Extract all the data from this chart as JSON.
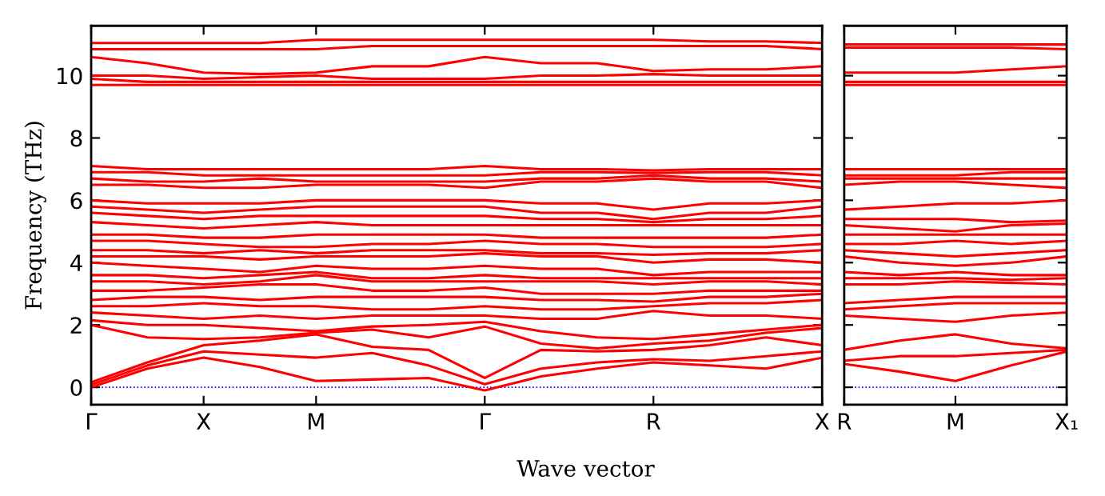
{
  "chart_data": [
    {
      "type": "line",
      "ylabel": "Frequency (THz)",
      "xlabel": "Wave vector",
      "categories": [
        "Γ",
        null,
        "X",
        null,
        "M",
        null,
        null,
        "Γ",
        null,
        null,
        "R",
        null,
        null,
        "X"
      ],
      "ylim": [
        -0.56,
        11.6
      ],
      "yticks": [
        0,
        2,
        4,
        6,
        8,
        10
      ],
      "grid": false,
      "line_style": "solid",
      "ref_lines": [
        {
          "axis": "y",
          "value": 0,
          "color": "#0000ff",
          "line_style": "dotted"
        }
      ],
      "series": [
        {
          "color": "#ff0000",
          "values": [
            0,
            0.6,
            0.95,
            0.65,
            0.2,
            0.25,
            0.3,
            -0.1,
            0.35,
            0.6,
            0.8,
            0.7,
            0.6,
            0.95
          ]
        },
        {
          "color": "#ff0000",
          "values": [
            0.08,
            0.7,
            1.15,
            1.05,
            0.95,
            1.1,
            0.7,
            0.1,
            0.6,
            0.8,
            0.9,
            0.85,
            1.0,
            1.15
          ]
        },
        {
          "color": "#ff0000",
          "values": [
            0.16,
            0.8,
            1.35,
            1.5,
            1.7,
            1.3,
            1.2,
            0.3,
            1.2,
            1.15,
            1.2,
            1.35,
            1.6,
            1.35
          ]
        },
        {
          "color": "#ff0000",
          "values": [
            2.0,
            1.6,
            1.55,
            1.6,
            1.75,
            1.85,
            1.6,
            1.95,
            1.4,
            1.25,
            1.4,
            1.5,
            1.75,
            1.9
          ]
        },
        {
          "color": "#ff0000",
          "values": [
            2.15,
            2.0,
            2.0,
            1.9,
            1.8,
            1.95,
            2.0,
            2.1,
            1.8,
            1.6,
            1.55,
            1.7,
            1.85,
            2.0
          ]
        },
        {
          "color": "#ff0000",
          "values": [
            2.4,
            2.3,
            2.2,
            2.3,
            2.2,
            2.3,
            2.3,
            2.3,
            2.2,
            2.2,
            2.45,
            2.3,
            2.3,
            2.2
          ]
        },
        {
          "color": "#ff0000",
          "values": [
            2.6,
            2.6,
            2.7,
            2.6,
            2.6,
            2.5,
            2.5,
            2.6,
            2.5,
            2.5,
            2.6,
            2.7,
            2.7,
            2.8
          ]
        },
        {
          "color": "#ff0000",
          "values": [
            2.8,
            2.9,
            2.9,
            2.8,
            2.9,
            2.9,
            2.9,
            2.9,
            2.8,
            2.8,
            2.75,
            2.9,
            2.9,
            3.0
          ]
        },
        {
          "color": "#ff0000",
          "values": [
            3.1,
            3.1,
            3.2,
            3.3,
            3.3,
            3.1,
            3.1,
            3.2,
            3.0,
            3.0,
            3.0,
            3.1,
            3.1,
            3.1
          ]
        },
        {
          "color": "#ff0000",
          "values": [
            3.4,
            3.4,
            3.3,
            3.4,
            3.6,
            3.4,
            3.4,
            3.4,
            3.4,
            3.4,
            3.3,
            3.4,
            3.4,
            3.3
          ]
        },
        {
          "color": "#ff0000",
          "values": [
            3.6,
            3.6,
            3.5,
            3.6,
            3.7,
            3.5,
            3.5,
            3.6,
            3.5,
            3.5,
            3.5,
            3.5,
            3.5,
            3.5
          ]
        },
        {
          "color": "#ff0000",
          "values": [
            4.0,
            3.9,
            3.8,
            3.7,
            3.9,
            3.8,
            3.8,
            3.9,
            3.8,
            3.8,
            3.6,
            3.7,
            3.7,
            3.7
          ]
        },
        {
          "color": "#ff0000",
          "values": [
            4.2,
            4.2,
            4.2,
            4.1,
            4.2,
            4.2,
            4.2,
            4.3,
            4.2,
            4.2,
            4.0,
            4.1,
            4.1,
            4.0
          ]
        },
        {
          "color": "#ff0000",
          "values": [
            4.4,
            4.4,
            4.3,
            4.4,
            4.3,
            4.4,
            4.4,
            4.4,
            4.3,
            4.3,
            4.25,
            4.3,
            4.3,
            4.4
          ]
        },
        {
          "color": "#ff0000",
          "values": [
            4.7,
            4.7,
            4.6,
            4.5,
            4.5,
            4.6,
            4.6,
            4.7,
            4.6,
            4.6,
            4.5,
            4.5,
            4.5,
            4.6
          ]
        },
        {
          "color": "#ff0000",
          "values": [
            4.9,
            4.9,
            4.8,
            4.8,
            4.9,
            4.9,
            4.9,
            4.9,
            4.8,
            4.8,
            4.8,
            4.8,
            4.8,
            4.9
          ]
        },
        {
          "color": "#ff0000",
          "values": [
            5.3,
            5.2,
            5.1,
            5.2,
            5.3,
            5.2,
            5.2,
            5.2,
            5.2,
            5.2,
            5.2,
            5.2,
            5.2,
            5.2
          ]
        },
        {
          "color": "#ff0000",
          "values": [
            5.6,
            5.5,
            5.4,
            5.5,
            5.5,
            5.5,
            5.5,
            5.5,
            5.4,
            5.4,
            5.3,
            5.4,
            5.4,
            5.5
          ]
        },
        {
          "color": "#ff0000",
          "values": [
            5.8,
            5.7,
            5.6,
            5.7,
            5.8,
            5.8,
            5.8,
            5.8,
            5.6,
            5.6,
            5.4,
            5.6,
            5.6,
            5.8
          ]
        },
        {
          "color": "#ff0000",
          "values": [
            6.0,
            5.9,
            5.9,
            5.9,
            6.0,
            6.0,
            6.0,
            6.0,
            5.9,
            5.9,
            5.7,
            5.9,
            5.9,
            6.0
          ]
        },
        {
          "color": "#ff0000",
          "values": [
            6.5,
            6.5,
            6.4,
            6.4,
            6.5,
            6.5,
            6.5,
            6.4,
            6.6,
            6.6,
            6.7,
            6.6,
            6.6,
            6.4
          ]
        },
        {
          "color": "#ff0000",
          "values": [
            6.7,
            6.6,
            6.6,
            6.7,
            6.6,
            6.6,
            6.6,
            6.6,
            6.7,
            6.7,
            6.8,
            6.7,
            6.7,
            6.6
          ]
        },
        {
          "color": "#ff0000",
          "values": [
            6.9,
            6.9,
            6.8,
            6.8,
            6.8,
            6.8,
            6.8,
            6.8,
            6.9,
            6.9,
            6.88,
            6.9,
            6.9,
            6.8
          ]
        },
        {
          "color": "#ff0000",
          "values": [
            7.1,
            7.0,
            7.0,
            7.0,
            7.0,
            7.0,
            7.0,
            7.1,
            7.0,
            7.0,
            6.96,
            7.0,
            7.0,
            7.0
          ]
        },
        {
          "color": "#ff0000",
          "values": [
            9.7,
            9.7,
            9.7,
            9.7,
            9.7,
            9.7,
            9.7,
            9.7,
            9.7,
            9.7,
            9.7,
            9.7,
            9.7,
            9.7
          ]
        },
        {
          "color": "#ff0000",
          "values": [
            9.9,
            9.8,
            9.8,
            9.8,
            9.8,
            9.8,
            9.8,
            9.8,
            9.8,
            9.8,
            9.8,
            9.8,
            9.8,
            9.8
          ]
        },
        {
          "color": "#ff0000",
          "values": [
            10.0,
            10.0,
            9.9,
            9.95,
            10.0,
            9.9,
            9.9,
            9.9,
            10.0,
            10.0,
            10.05,
            10.0,
            10.0,
            10.0
          ]
        },
        {
          "color": "#ff0000",
          "values": [
            10.6,
            10.4,
            10.1,
            10.05,
            10.1,
            10.3,
            10.3,
            10.6,
            10.4,
            10.4,
            10.15,
            10.2,
            10.2,
            10.3
          ]
        },
        {
          "color": "#ff0000",
          "values": [
            10.85,
            10.85,
            10.85,
            10.85,
            10.85,
            10.95,
            10.95,
            10.95,
            10.95,
            10.95,
            10.95,
            10.95,
            10.95,
            10.85
          ]
        },
        {
          "color": "#ff0000",
          "values": [
            11.05,
            11.05,
            11.05,
            11.05,
            11.15,
            11.15,
            11.15,
            11.15,
            11.15,
            11.15,
            11.15,
            11.1,
            11.1,
            11.05
          ]
        }
      ]
    },
    {
      "type": "line",
      "categories": [
        "R",
        null,
        "M",
        null,
        "X₁"
      ],
      "ylim": [
        -0.56,
        11.6
      ],
      "yticks": [
        0,
        2,
        4,
        6,
        8,
        10
      ],
      "tick_labels": "x",
      "grid": false,
      "line_style": "solid",
      "ref_lines": [
        {
          "axis": "y",
          "value": 0,
          "color": "#0000ff",
          "line_style": "dotted"
        }
      ],
      "series": [
        {
          "color": "#ff0000",
          "values": [
            0.75,
            0.5,
            0.2,
            0.7,
            1.15
          ]
        },
        {
          "color": "#ff0000",
          "values": [
            0.85,
            1.0,
            1.0,
            1.1,
            1.2
          ]
        },
        {
          "color": "#ff0000",
          "values": [
            1.2,
            1.5,
            1.7,
            1.4,
            1.25
          ]
        },
        {
          "color": "#ff0000",
          "values": [
            2.3,
            2.2,
            2.1,
            2.3,
            2.4
          ]
        },
        {
          "color": "#ff0000",
          "values": [
            2.5,
            2.6,
            2.7,
            2.7,
            2.7
          ]
        },
        {
          "color": "#ff0000",
          "values": [
            2.7,
            2.8,
            2.9,
            2.9,
            2.9
          ]
        },
        {
          "color": "#ff0000",
          "values": [
            3.3,
            3.3,
            3.4,
            3.35,
            3.3
          ]
        },
        {
          "color": "#ff0000",
          "values": [
            3.5,
            3.5,
            3.5,
            3.45,
            3.5
          ]
        },
        {
          "color": "#ff0000",
          "values": [
            3.7,
            3.6,
            3.7,
            3.6,
            3.6
          ]
        },
        {
          "color": "#ff0000",
          "values": [
            4.2,
            4.0,
            3.9,
            4.0,
            4.2
          ]
        },
        {
          "color": "#ff0000",
          "values": [
            4.4,
            4.3,
            4.2,
            4.3,
            4.4
          ]
        },
        {
          "color": "#ff0000",
          "values": [
            4.6,
            4.6,
            4.7,
            4.6,
            4.7
          ]
        },
        {
          "color": "#ff0000",
          "values": [
            4.9,
            4.9,
            4.9,
            4.9,
            4.9
          ]
        },
        {
          "color": "#ff0000",
          "values": [
            5.2,
            5.1,
            5.0,
            5.2,
            5.25
          ]
        },
        {
          "color": "#ff0000",
          "values": [
            5.4,
            5.4,
            5.4,
            5.3,
            5.35
          ]
        },
        {
          "color": "#ff0000",
          "values": [
            5.7,
            5.8,
            5.9,
            5.9,
            6.0
          ]
        },
        {
          "color": "#ff0000",
          "values": [
            6.5,
            6.6,
            6.6,
            6.5,
            6.4
          ]
        },
        {
          "color": "#ff0000",
          "values": [
            6.7,
            6.7,
            6.7,
            6.7,
            6.7
          ]
        },
        {
          "color": "#ff0000",
          "values": [
            6.8,
            6.8,
            6.8,
            6.9,
            6.9
          ]
        },
        {
          "color": "#ff0000",
          "values": [
            7.0,
            7.0,
            7.0,
            7.0,
            7.0
          ]
        },
        {
          "color": "#ff0000",
          "values": [
            9.7,
            9.7,
            9.7,
            9.7,
            9.7
          ]
        },
        {
          "color": "#ff0000",
          "values": [
            9.8,
            9.8,
            9.8,
            9.8,
            9.8
          ]
        },
        {
          "color": "#ff0000",
          "values": [
            10.1,
            10.1,
            10.1,
            10.2,
            10.3
          ]
        },
        {
          "color": "#ff0000",
          "values": [
            10.9,
            10.9,
            10.9,
            10.9,
            10.85
          ]
        },
        {
          "color": "#ff0000",
          "values": [
            11.0,
            11.0,
            11.0,
            11.0,
            11.0
          ]
        }
      ]
    }
  ]
}
